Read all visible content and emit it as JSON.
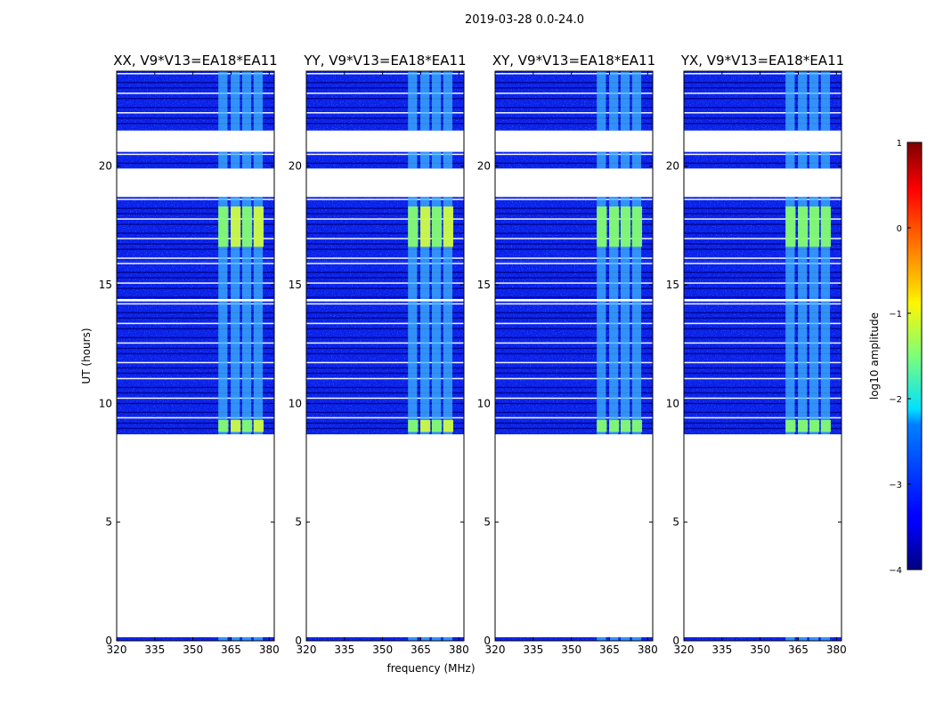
{
  "figure": {
    "suptitle": "2019-03-28 0.0-24.0"
  },
  "chart_data": {
    "type": "heatmap",
    "title": "2019-03-28 0.0-24.0",
    "xlabel": "frequency (MHz)",
    "ylabel": "UT (hours)",
    "xlim": [
      320,
      382
    ],
    "ylim": [
      0,
      24
    ],
    "xticks": [
      320,
      335,
      350,
      365,
      380
    ],
    "yticks": [
      0,
      5,
      10,
      15,
      20
    ],
    "panels": [
      {
        "title": "XX, V9*V13=EA18*EA11",
        "polarization": "XX"
      },
      {
        "title": "YY, V9*V13=EA18*EA11",
        "polarization": "YY"
      },
      {
        "title": "XY, V9*V13=EA18*EA11",
        "polarization": "XY"
      },
      {
        "title": "YX, V9*V13=EA18*EA11",
        "polarization": "YX"
      }
    ],
    "data_blocks_ut_hours": [
      [
        0.0,
        0.15
      ],
      [
        8.7,
        14.3
      ],
      [
        14.4,
        16.0
      ],
      [
        16.0,
        18.7
      ],
      [
        19.9,
        20.6
      ],
      [
        21.5,
        24.0
      ]
    ],
    "rfi_band_mhz": [
      360,
      378
    ],
    "colorbar": {
      "label": "log10 amplitude",
      "range": [
        -4,
        1
      ],
      "ticks": [
        1,
        0,
        -1,
        -2,
        -3,
        -4
      ],
      "tick_labels": [
        "1",
        "0",
        "−1",
        "−2",
        "−3",
        "−4"
      ],
      "colormap": "jet"
    }
  }
}
